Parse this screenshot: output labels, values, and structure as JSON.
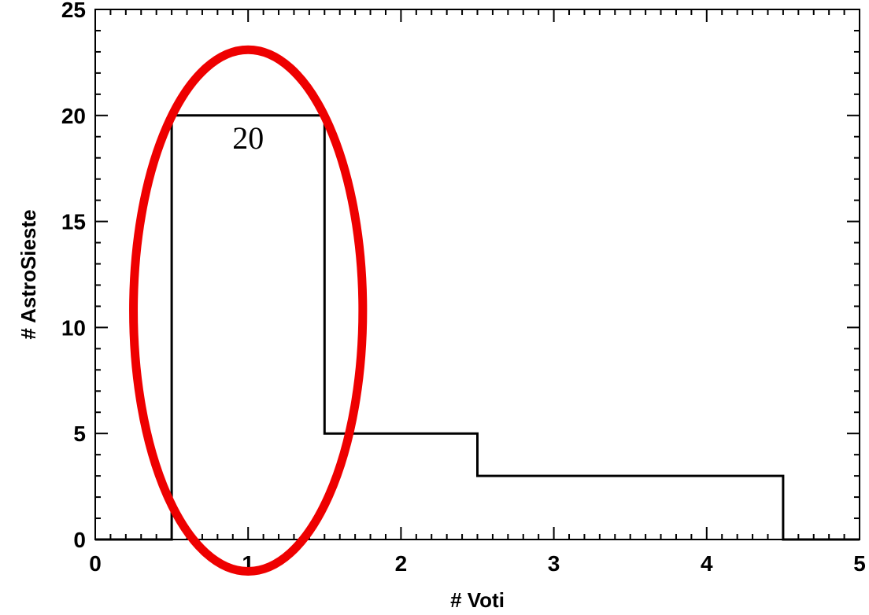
{
  "chart_data": {
    "type": "histogram-step",
    "xlabel": "# Voti",
    "ylabel": "# AstroSieste",
    "xlim": [
      0,
      5
    ],
    "ylim": [
      0,
      25
    ],
    "x_ticks": [
      "0",
      "1",
      "2",
      "3",
      "4",
      "5"
    ],
    "y_ticks": [
      "0",
      "5",
      "10",
      "15",
      "20",
      "25"
    ],
    "bins": [
      {
        "x_start": 0.0,
        "x_end": 0.5,
        "value": 0
      },
      {
        "x_start": 0.5,
        "x_end": 1.5,
        "value": 20
      },
      {
        "x_start": 1.5,
        "x_end": 2.5,
        "value": 5
      },
      {
        "x_start": 2.5,
        "x_end": 4.5,
        "value": 3
      },
      {
        "x_start": 4.5,
        "x_end": 5.0,
        "value": 0
      }
    ],
    "annotations": [
      {
        "text": "20",
        "x": 1.0,
        "y": 20
      }
    ],
    "highlight": {
      "shape": "ellipse",
      "color": "#ee0000",
      "cx": 1.0,
      "cy": 10.8,
      "rx": 0.75,
      "ry": 12.3
    },
    "line_color": "#000000"
  }
}
